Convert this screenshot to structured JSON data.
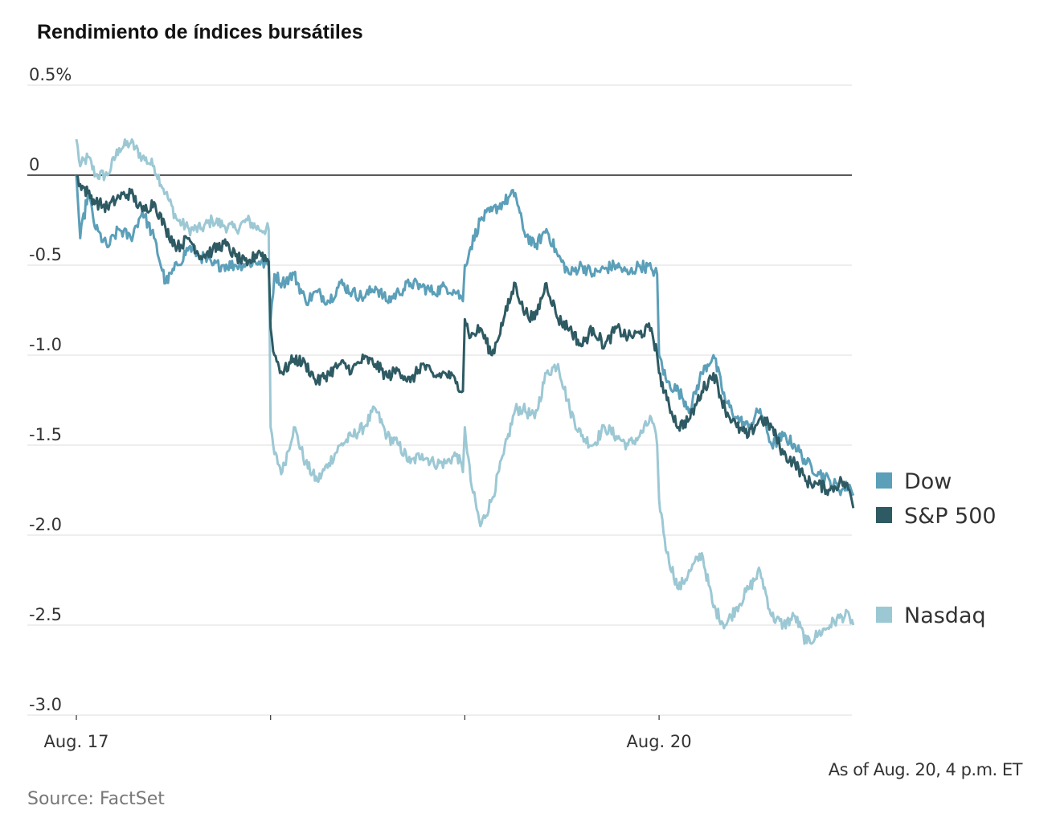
{
  "note": "As of Aug. 20, 4 p.m. ET",
  "source": "Source: FactSet",
  "colors": {
    "dow": "#5b9fb9",
    "sp500": "#2e5a63",
    "nasdaq": "#9cc8d4",
    "grid": "#dddddd",
    "zero_line": "#222222"
  },
  "chart_data": {
    "type": "line",
    "title": "Rendimiento de índices bursátiles",
    "xlabel": "",
    "ylabel": "",
    "ylim": [
      -3.0,
      0.5
    ],
    "xlim": [
      0,
      4
    ],
    "y_ticks": [
      {
        "value": 0.5,
        "label": "0.5%"
      },
      {
        "value": 0,
        "label": "0"
      },
      {
        "value": -0.5,
        "label": "-0.5"
      },
      {
        "value": -1.0,
        "label": "-1.0"
      },
      {
        "value": -1.5,
        "label": "-1.5"
      },
      {
        "value": -2.0,
        "label": "-2.0"
      },
      {
        "value": -2.5,
        "label": "-2.5"
      },
      {
        "value": -3.0,
        "label": "-3.0"
      }
    ],
    "x_ticks": [
      {
        "value": 0,
        "label": "Aug. 17"
      },
      {
        "value": 1,
        "label": ""
      },
      {
        "value": 2,
        "label": ""
      },
      {
        "value": 3,
        "label": "Aug. 20"
      }
    ],
    "grid": true,
    "legend_position": "right",
    "series": [
      {
        "name": "Dow",
        "color": "#5b9fb9",
        "x": [
          0,
          0.02,
          0.06,
          0.1,
          0.16,
          0.22,
          0.28,
          0.34,
          0.4,
          0.46,
          0.52,
          0.58,
          0.64,
          0.7,
          0.76,
          0.82,
          0.88,
          0.94,
          0.99,
          1.0,
          1.02,
          1.06,
          1.12,
          1.18,
          1.24,
          1.3,
          1.36,
          1.42,
          1.48,
          1.54,
          1.6,
          1.66,
          1.72,
          1.78,
          1.84,
          1.9,
          1.96,
          1.99,
          2.0,
          2.03,
          2.08,
          2.14,
          2.2,
          2.26,
          2.3,
          2.36,
          2.42,
          2.48,
          2.54,
          2.6,
          2.66,
          2.72,
          2.78,
          2.84,
          2.9,
          2.96,
          2.99,
          3.0,
          3.04,
          3.1,
          3.16,
          3.22,
          3.28,
          3.34,
          3.4,
          3.46,
          3.52,
          3.58,
          3.64,
          3.7,
          3.76,
          3.82,
          3.88,
          3.94,
          3.98,
          4.0
        ],
        "values": [
          0.0,
          -0.35,
          -0.1,
          -0.3,
          -0.4,
          -0.3,
          -0.35,
          -0.2,
          -0.35,
          -0.6,
          -0.5,
          -0.4,
          -0.45,
          -0.5,
          -0.5,
          -0.5,
          -0.49,
          -0.48,
          -0.5,
          -0.8,
          -0.55,
          -0.6,
          -0.55,
          -0.7,
          -0.65,
          -0.7,
          -0.6,
          -0.65,
          -0.68,
          -0.62,
          -0.7,
          -0.65,
          -0.6,
          -0.62,
          -0.65,
          -0.62,
          -0.65,
          -0.7,
          -0.5,
          -0.4,
          -0.25,
          -0.2,
          -0.15,
          -0.1,
          -0.3,
          -0.4,
          -0.3,
          -0.45,
          -0.55,
          -0.5,
          -0.55,
          -0.52,
          -0.5,
          -0.55,
          -0.5,
          -0.52,
          -0.55,
          -1.0,
          -1.15,
          -1.2,
          -1.3,
          -1.1,
          -1.0,
          -1.25,
          -1.35,
          -1.4,
          -1.3,
          -1.5,
          -1.45,
          -1.5,
          -1.6,
          -1.65,
          -1.7,
          -1.75,
          -1.72,
          -1.78
        ]
      },
      {
        "name": "S&P 500",
        "color": "#2e5a63",
        "x": [
          0,
          0.02,
          0.06,
          0.1,
          0.16,
          0.22,
          0.28,
          0.34,
          0.4,
          0.46,
          0.52,
          0.58,
          0.64,
          0.7,
          0.76,
          0.82,
          0.88,
          0.94,
          0.99,
          1.0,
          1.02,
          1.06,
          1.12,
          1.18,
          1.24,
          1.3,
          1.36,
          1.42,
          1.48,
          1.54,
          1.6,
          1.66,
          1.72,
          1.78,
          1.84,
          1.9,
          1.96,
          1.99,
          2.0,
          2.03,
          2.08,
          2.14,
          2.2,
          2.26,
          2.3,
          2.36,
          2.42,
          2.48,
          2.54,
          2.6,
          2.66,
          2.72,
          2.78,
          2.84,
          2.9,
          2.96,
          2.99,
          3.0,
          3.04,
          3.1,
          3.16,
          3.22,
          3.28,
          3.34,
          3.4,
          3.46,
          3.52,
          3.58,
          3.64,
          3.7,
          3.76,
          3.82,
          3.88,
          3.94,
          3.98,
          4.0
        ],
        "values": [
          0.0,
          -0.05,
          -0.1,
          -0.15,
          -0.18,
          -0.12,
          -0.1,
          -0.2,
          -0.15,
          -0.3,
          -0.4,
          -0.35,
          -0.45,
          -0.42,
          -0.38,
          -0.45,
          -0.5,
          -0.42,
          -0.48,
          -0.85,
          -1.0,
          -1.1,
          -1.02,
          -1.05,
          -1.15,
          -1.1,
          -1.05,
          -1.08,
          -1.02,
          -1.05,
          -1.12,
          -1.08,
          -1.15,
          -1.05,
          -1.12,
          -1.1,
          -1.15,
          -1.2,
          -0.8,
          -0.9,
          -0.85,
          -1.0,
          -0.8,
          -0.6,
          -0.75,
          -0.8,
          -0.6,
          -0.8,
          -0.85,
          -0.95,
          -0.85,
          -0.95,
          -0.85,
          -0.9,
          -0.88,
          -0.85,
          -1.0,
          -1.1,
          -1.25,
          -1.4,
          -1.35,
          -1.2,
          -1.1,
          -1.3,
          -1.4,
          -1.45,
          -1.35,
          -1.4,
          -1.55,
          -1.6,
          -1.7,
          -1.72,
          -1.75,
          -1.7,
          -1.75,
          -1.85
        ]
      },
      {
        "name": "Nasdaq",
        "color": "#9cc8d4",
        "x": [
          0,
          0.02,
          0.06,
          0.1,
          0.16,
          0.22,
          0.28,
          0.34,
          0.4,
          0.46,
          0.52,
          0.58,
          0.64,
          0.7,
          0.76,
          0.82,
          0.88,
          0.94,
          0.99,
          1.0,
          1.02,
          1.06,
          1.12,
          1.18,
          1.24,
          1.3,
          1.36,
          1.42,
          1.48,
          1.54,
          1.6,
          1.66,
          1.72,
          1.78,
          1.84,
          1.9,
          1.96,
          1.99,
          2.0,
          2.03,
          2.08,
          2.14,
          2.2,
          2.26,
          2.3,
          2.36,
          2.42,
          2.48,
          2.54,
          2.6,
          2.66,
          2.72,
          2.78,
          2.84,
          2.9,
          2.96,
          2.99,
          3.0,
          3.04,
          3.1,
          3.16,
          3.22,
          3.28,
          3.34,
          3.4,
          3.46,
          3.52,
          3.58,
          3.64,
          3.7,
          3.76,
          3.82,
          3.88,
          3.94,
          3.98,
          4.0
        ],
        "values": [
          0.2,
          0.05,
          0.1,
          0.0,
          0.0,
          0.15,
          0.18,
          0.1,
          0.05,
          -0.1,
          -0.25,
          -0.3,
          -0.3,
          -0.25,
          -0.28,
          -0.3,
          -0.25,
          -0.3,
          -0.3,
          -1.4,
          -1.55,
          -1.65,
          -1.4,
          -1.6,
          -1.7,
          -1.6,
          -1.5,
          -1.45,
          -1.4,
          -1.3,
          -1.45,
          -1.5,
          -1.6,
          -1.55,
          -1.6,
          -1.6,
          -1.55,
          -1.65,
          -1.4,
          -1.7,
          -1.95,
          -1.8,
          -1.55,
          -1.3,
          -1.3,
          -1.35,
          -1.1,
          -1.05,
          -1.3,
          -1.45,
          -1.5,
          -1.4,
          -1.45,
          -1.5,
          -1.45,
          -1.35,
          -1.5,
          -1.8,
          -2.1,
          -2.3,
          -2.2,
          -2.1,
          -2.4,
          -2.5,
          -2.4,
          -2.3,
          -2.2,
          -2.45,
          -2.5,
          -2.45,
          -2.6,
          -2.55,
          -2.5,
          -2.45,
          -2.45,
          -2.5
        ]
      }
    ]
  }
}
